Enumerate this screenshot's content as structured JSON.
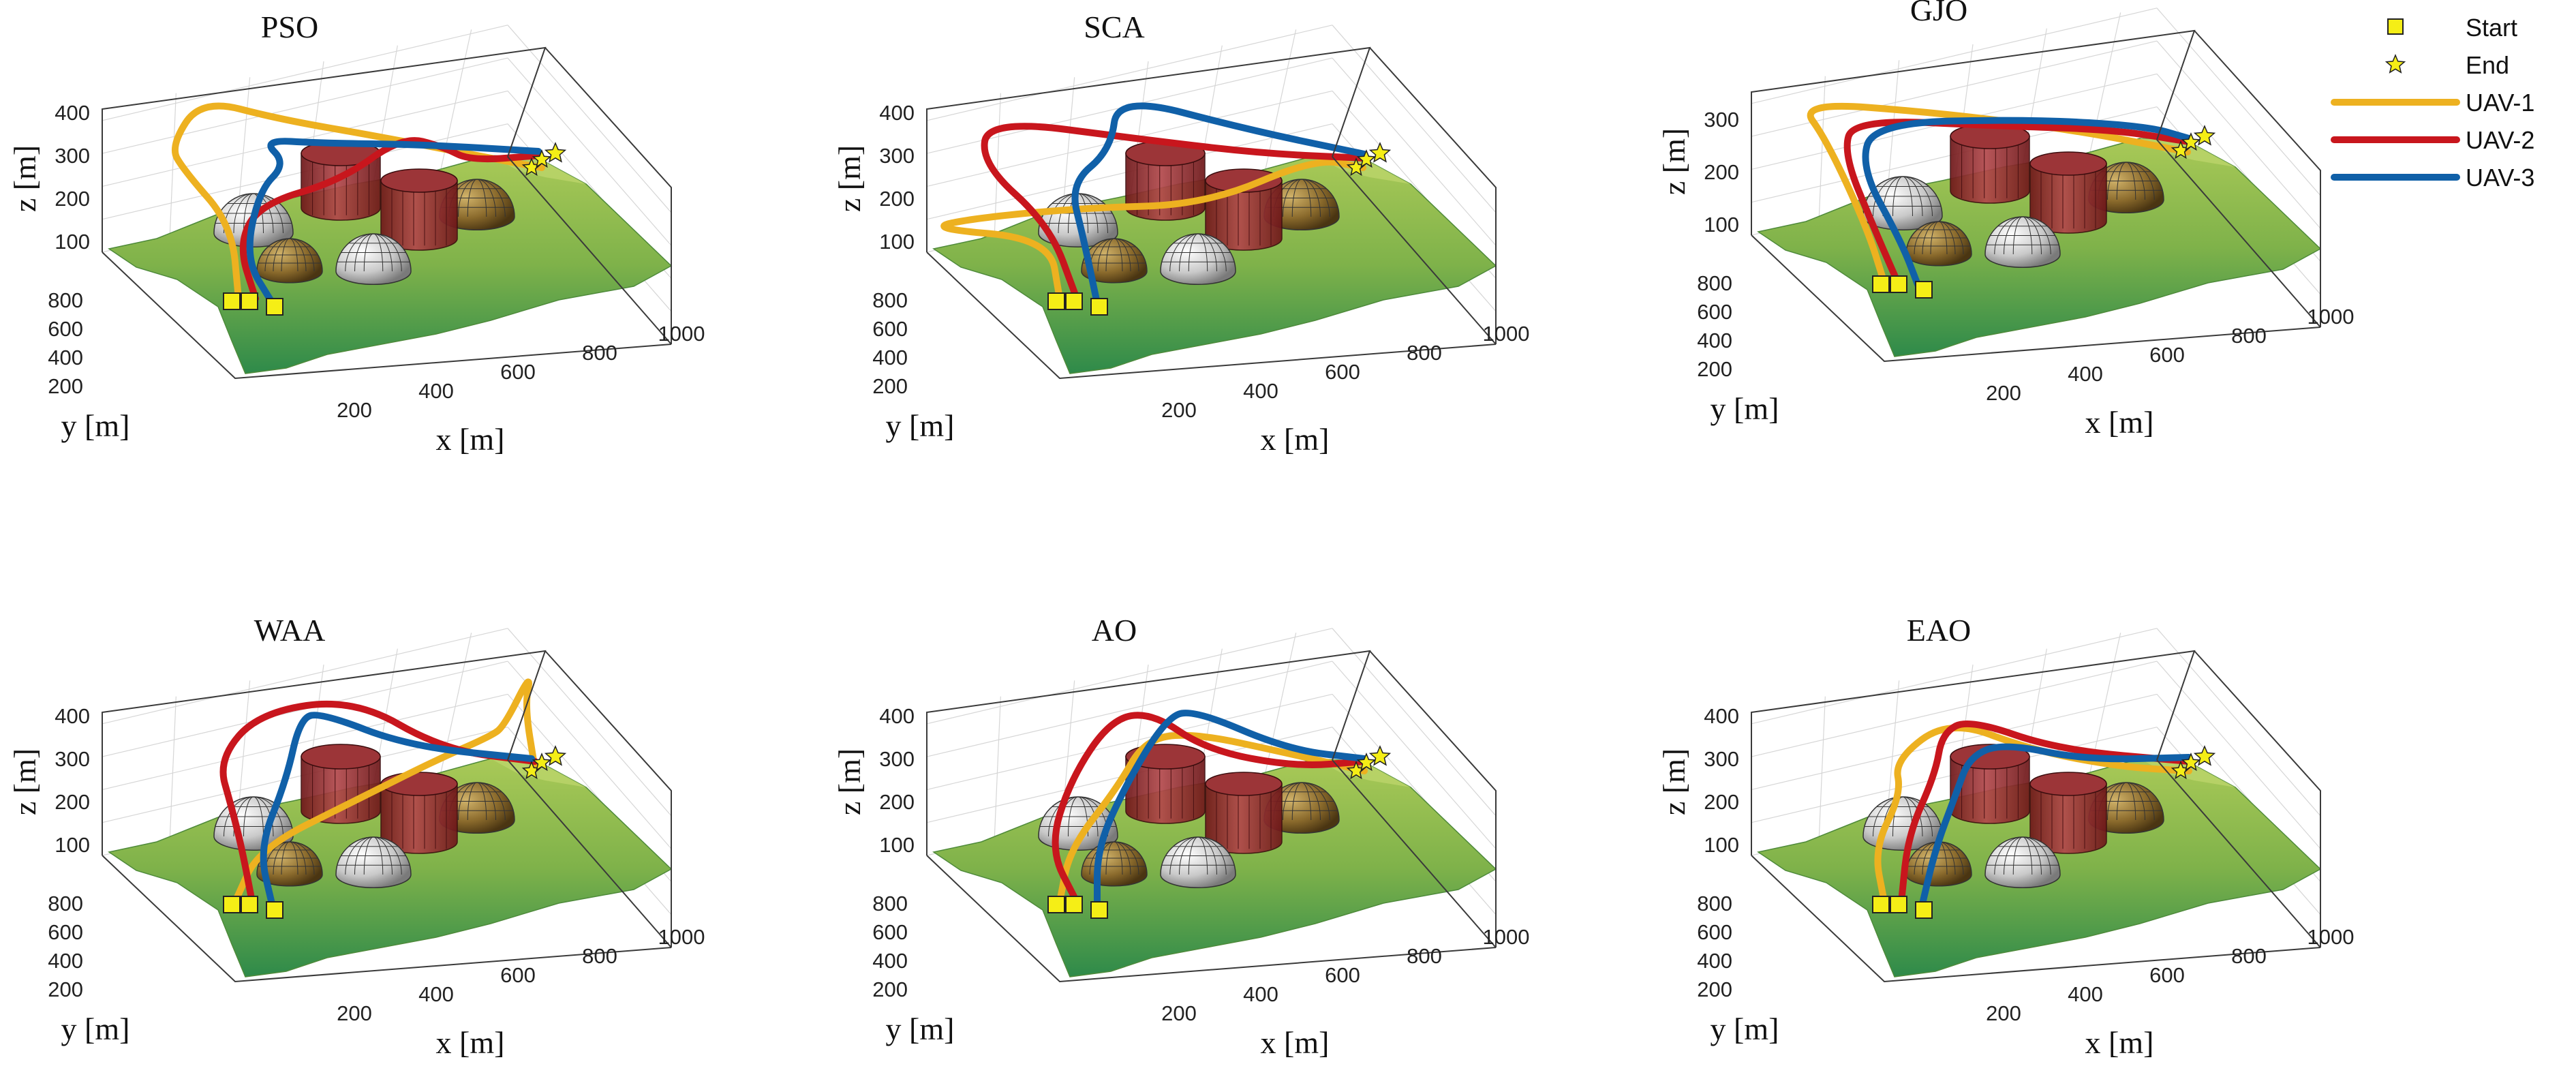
{
  "chart_data": [
    {
      "type": "line",
      "title": "PSO",
      "xlabel": "x [m]",
      "ylabel": "y [m]",
      "zlabel": "z [m]",
      "xticks": [
        "200",
        "400",
        "600",
        "800",
        "1000"
      ],
      "yticks": [
        "200",
        "400",
        "600",
        "800"
      ],
      "zticks": [
        "100",
        "200",
        "300",
        "400"
      ],
      "series": [
        {
          "name": "UAV-1",
          "color": "#edb120"
        },
        {
          "name": "UAV-2",
          "color": "#c8161d"
        },
        {
          "name": "UAV-3",
          "color": "#1060a8"
        }
      ]
    },
    {
      "type": "line",
      "title": "SCA",
      "xlabel": "x [m]",
      "ylabel": "y [m]",
      "zlabel": "z [m]",
      "xticks": [
        "200",
        "400",
        "600",
        "800",
        "1000"
      ],
      "yticks": [
        "200",
        "400",
        "600",
        "800"
      ],
      "zticks": [
        "100",
        "200",
        "300",
        "400"
      ],
      "series": [
        {
          "name": "UAV-1",
          "color": "#edb120"
        },
        {
          "name": "UAV-2",
          "color": "#c8161d"
        },
        {
          "name": "UAV-3",
          "color": "#1060a8"
        }
      ]
    },
    {
      "type": "line",
      "title": "GJO",
      "xlabel": "x [m]",
      "ylabel": "y [m]",
      "zlabel": "z [m]",
      "xticks": [
        "200",
        "400",
        "600",
        "800",
        "1000"
      ],
      "yticks": [
        "200",
        "400",
        "600",
        "800"
      ],
      "zticks": [
        "100",
        "200",
        "300"
      ],
      "series": [
        {
          "name": "UAV-1",
          "color": "#edb120"
        },
        {
          "name": "UAV-2",
          "color": "#c8161d"
        },
        {
          "name": "UAV-3",
          "color": "#1060a8"
        }
      ]
    },
    {
      "type": "line",
      "title": "WAA",
      "xlabel": "x [m]",
      "ylabel": "y [m]",
      "zlabel": "z [m]",
      "xticks": [
        "200",
        "400",
        "600",
        "800",
        "1000"
      ],
      "yticks": [
        "200",
        "400",
        "600",
        "800"
      ],
      "zticks": [
        "100",
        "200",
        "300",
        "400"
      ],
      "series": [
        {
          "name": "UAV-1",
          "color": "#edb120"
        },
        {
          "name": "UAV-2",
          "color": "#c8161d"
        },
        {
          "name": "UAV-3",
          "color": "#1060a8"
        }
      ]
    },
    {
      "type": "line",
      "title": "AO",
      "xlabel": "x [m]",
      "ylabel": "y [m]",
      "zlabel": "z [m]",
      "xticks": [
        "200",
        "400",
        "600",
        "800",
        "1000"
      ],
      "yticks": [
        "200",
        "400",
        "600",
        "800"
      ],
      "zticks": [
        "100",
        "200",
        "300",
        "400"
      ],
      "series": [
        {
          "name": "UAV-1",
          "color": "#edb120"
        },
        {
          "name": "UAV-2",
          "color": "#c8161d"
        },
        {
          "name": "UAV-3",
          "color": "#1060a8"
        }
      ]
    },
    {
      "type": "line",
      "title": "EAO",
      "xlabel": "x [m]",
      "ylabel": "y [m]",
      "zlabel": "z [m]",
      "xticks": [
        "200",
        "400",
        "600",
        "800",
        "1000"
      ],
      "yticks": [
        "200",
        "400",
        "600",
        "800"
      ],
      "zticks": [
        "100",
        "200",
        "300",
        "400"
      ],
      "series": [
        {
          "name": "UAV-1",
          "color": "#edb120"
        },
        {
          "name": "UAV-2",
          "color": "#c8161d"
        },
        {
          "name": "UAV-3",
          "color": "#1060a8"
        }
      ]
    }
  ],
  "legend": {
    "entries": [
      {
        "label": "Start",
        "marker": "square",
        "color": "#f5ee16"
      },
      {
        "label": "End",
        "marker": "star",
        "color": "#f5ee16"
      },
      {
        "label": "UAV-1",
        "marker": "line",
        "color": "#edb120"
      },
      {
        "label": "UAV-2",
        "marker": "line",
        "color": "#c8161d"
      },
      {
        "label": "UAV-3",
        "marker": "line",
        "color": "#1060a8"
      }
    ]
  },
  "colors": {
    "terrain": "#7fb24a",
    "cylinder": "#8a1f22",
    "sphere_gray": "#c9c9c9",
    "sphere_brown": "#8a6a2c"
  }
}
